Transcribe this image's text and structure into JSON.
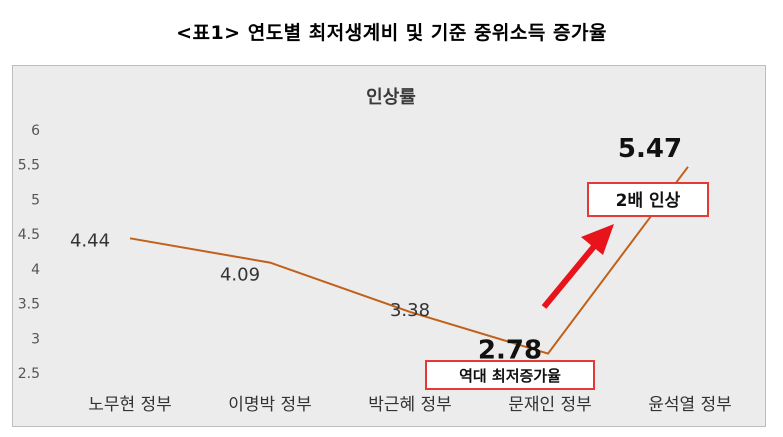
{
  "heading": "<표1> 연도별 최저생계비 및 기준 중위소득 증가율",
  "chart_data": {
    "type": "line",
    "title": "인상률",
    "categories": [
      "노무현 정부",
      "이명박 정부",
      "박근혜 정부",
      "문재인 정부",
      "윤석열 정부"
    ],
    "y_ticks": [
      "6",
      "5.5",
      "5",
      "4.5",
      "4",
      "3.5",
      "3",
      "2.5"
    ],
    "series": [
      {
        "values": [
          4.44,
          4.09,
          3.38,
          2.78,
          5.47
        ],
        "labels": [
          "4.44",
          "4.09",
          "3.38",
          "2.78",
          "5.47"
        ]
      }
    ],
    "ylim": [
      2.5,
      6
    ],
    "grid": false,
    "line_color": "#c0601a",
    "annotations": [
      {
        "text": "역대 최저증가율",
        "near": "문재인 정부"
      },
      {
        "text": "2배 인상",
        "near": "윤석열 정부"
      }
    ],
    "arrow_color": "#e8141b"
  }
}
